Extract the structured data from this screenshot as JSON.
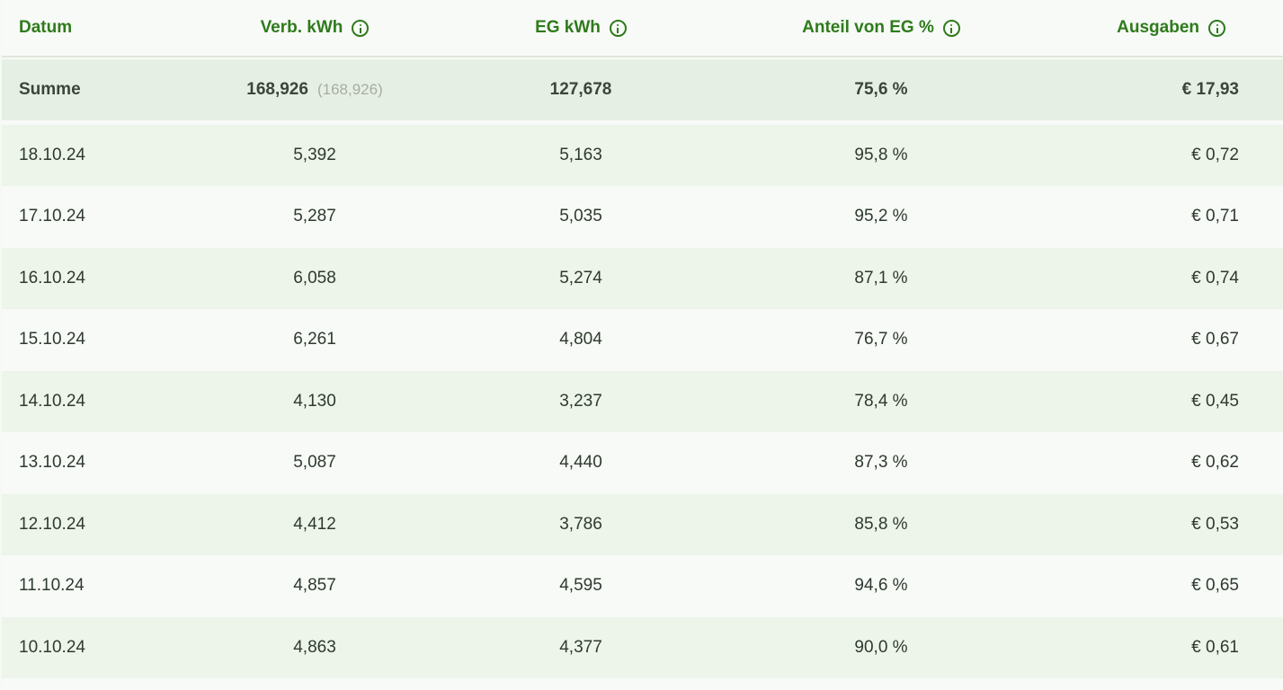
{
  "header": {
    "date": "Datum",
    "verb_kwh": "Verb. kWh",
    "eg_kwh": "EG kWh",
    "anteil": "Anteil von EG %",
    "ausgaben": "Ausgaben"
  },
  "summary": {
    "label": "Summe",
    "verb_kwh": "168,926",
    "verb_kwh_sub": "(168,926)",
    "eg_kwh": "127,678",
    "anteil": "75,6 %",
    "ausgaben": "€ 17,93"
  },
  "rows": [
    {
      "date": "18.10.24",
      "verb": "5,392",
      "eg": "5,163",
      "anteil": "95,8 %",
      "ausgaben": "€ 0,72"
    },
    {
      "date": "17.10.24",
      "verb": "5,287",
      "eg": "5,035",
      "anteil": "95,2 %",
      "ausgaben": "€ 0,71"
    },
    {
      "date": "16.10.24",
      "verb": "6,058",
      "eg": "5,274",
      "anteil": "87,1 %",
      "ausgaben": "€ 0,74"
    },
    {
      "date": "15.10.24",
      "verb": "6,261",
      "eg": "4,804",
      "anteil": "76,7 %",
      "ausgaben": "€ 0,67"
    },
    {
      "date": "14.10.24",
      "verb": "4,130",
      "eg": "3,237",
      "anteil": "78,4 %",
      "ausgaben": "€ 0,45"
    },
    {
      "date": "13.10.24",
      "verb": "5,087",
      "eg": "4,440",
      "anteil": "87,3 %",
      "ausgaben": "€ 0,62"
    },
    {
      "date": "12.10.24",
      "verb": "4,412",
      "eg": "3,786",
      "anteil": "85,8 %",
      "ausgaben": "€ 0,53"
    },
    {
      "date": "11.10.24",
      "verb": "4,857",
      "eg": "4,595",
      "anteil": "94,6 %",
      "ausgaben": "€ 0,65"
    },
    {
      "date": "10.10.24",
      "verb": "4,863",
      "eg": "4,377",
      "anteil": "90,0 %",
      "ausgaben": "€ 0,61"
    }
  ],
  "colors": {
    "accent": "#2f7a1c",
    "row_alt": "#edf4ea",
    "summary_bg": "#e6efe3"
  },
  "icons": {
    "info": "info-circle-icon"
  }
}
